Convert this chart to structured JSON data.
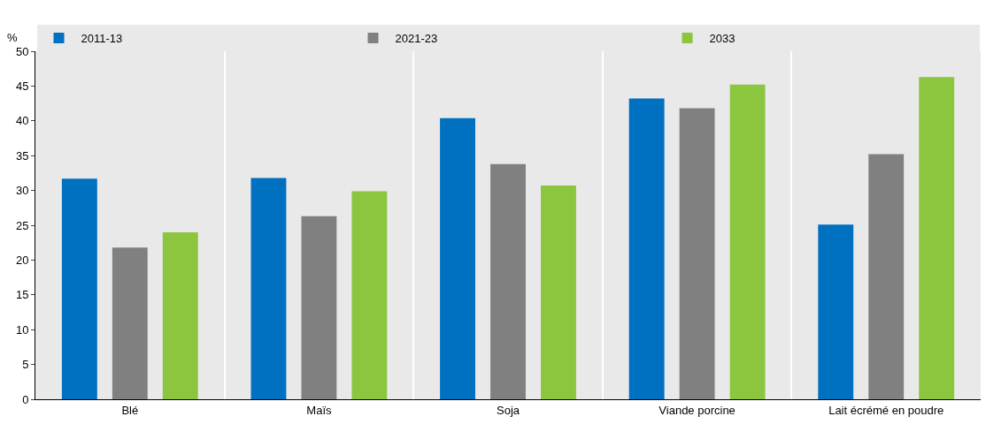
{
  "chart_data": {
    "type": "bar",
    "ylabel": "%",
    "categories": [
      "Blé",
      "Maïs",
      "Soja",
      "Viande porcine",
      "Lait écrémé en poudre"
    ],
    "series": [
      {
        "name": "2011-13",
        "color": "#0070c0",
        "values": [
          31.7,
          31.8,
          40.4,
          43.2,
          25.1
        ]
      },
      {
        "name": "2021-23",
        "color": "#808080",
        "values": [
          21.8,
          26.3,
          33.8,
          41.8,
          35.2
        ]
      },
      {
        "name": "2033",
        "color": "#8cc63f",
        "values": [
          24.0,
          29.9,
          30.7,
          45.2,
          46.3
        ]
      }
    ],
    "ylim": [
      0,
      50
    ],
    "yticks": [
      0,
      5,
      10,
      15,
      20,
      25,
      30,
      35,
      40,
      45,
      50
    ],
    "grid": "x",
    "legend": "top"
  }
}
